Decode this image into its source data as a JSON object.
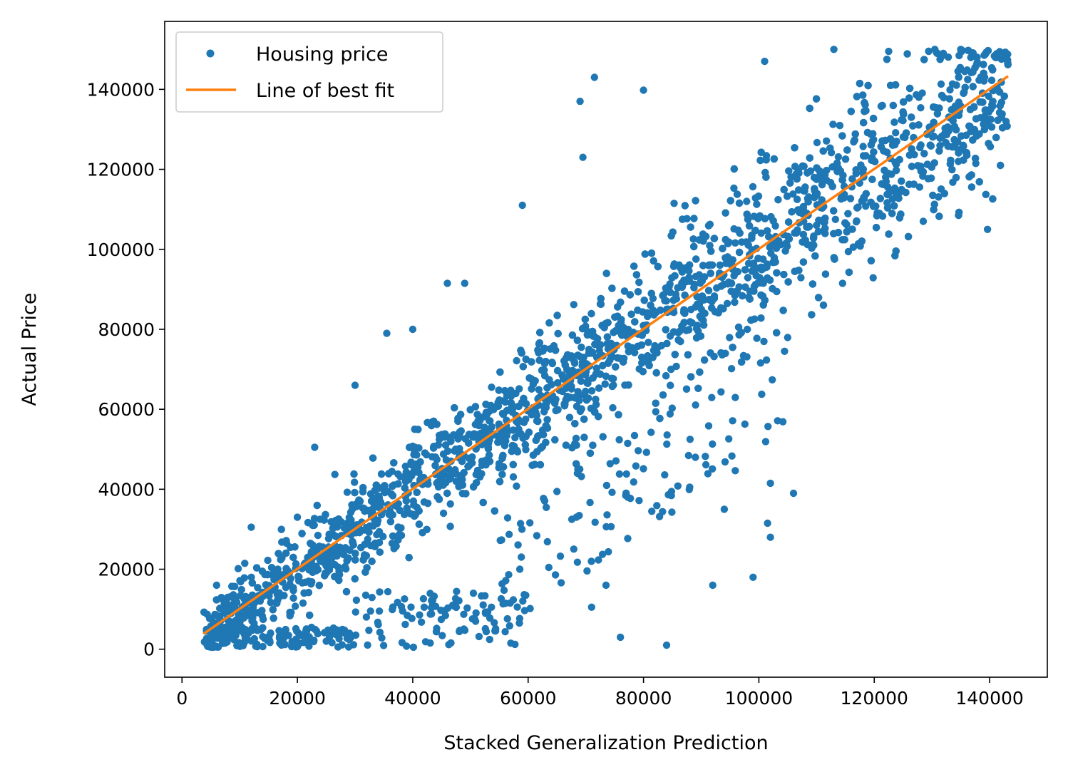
{
  "chart_data": {
    "type": "scatter",
    "xlabel": "Stacked Generalization Prediction",
    "ylabel": "Actual Price",
    "xlim": [
      -3000,
      150000
    ],
    "ylim": [
      -7000,
      157000
    ],
    "x_ticks": [
      0,
      20000,
      40000,
      60000,
      80000,
      100000,
      120000,
      140000
    ],
    "y_ticks": [
      0,
      20000,
      40000,
      60000,
      80000,
      100000,
      120000,
      140000
    ],
    "x_tick_labels": [
      "0",
      "20000",
      "40000",
      "60000",
      "80000",
      "100000",
      "120000",
      "140000"
    ],
    "y_tick_labels": [
      "0",
      "20000",
      "40000",
      "60000",
      "80000",
      "100000",
      "120000",
      "140000"
    ],
    "grid": false,
    "legend_position": "top-left",
    "series": [
      {
        "name": "Housing price",
        "kind": "scatter",
        "color": "#1f77b4",
        "description": "dense point cloud clustered around the best-fit line",
        "x_range": [
          3700,
          143200
        ],
        "y_range": [
          500,
          150000
        ],
        "sample_points": [
          [
            69000,
            137000
          ],
          [
            71500,
            143000
          ],
          [
            80000,
            139800
          ],
          [
            69500,
            123000
          ],
          [
            59000,
            111000
          ],
          [
            46000,
            91500
          ],
          [
            49000,
            91500
          ],
          [
            35500,
            79000
          ],
          [
            40000,
            80000
          ],
          [
            30000,
            66000
          ],
          [
            20000,
            33000
          ],
          [
            12000,
            30500
          ],
          [
            23000,
            50500
          ],
          [
            57000,
            1500
          ],
          [
            76000,
            3000
          ],
          [
            84000,
            1000
          ],
          [
            102000,
            41500
          ],
          [
            106000,
            39000
          ],
          [
            101500,
            31500
          ],
          [
            102000,
            28000
          ],
          [
            99000,
            18000
          ],
          [
            92000,
            16000
          ],
          [
            73500,
            16000
          ],
          [
            71000,
            10500
          ],
          [
            94000,
            35000
          ],
          [
            89000,
            48000
          ],
          [
            128500,
            107000
          ],
          [
            114500,
            91500
          ],
          [
            101000,
            147000
          ],
          [
            113000,
            150000
          ],
          [
            122500,
            149500
          ],
          [
            130500,
            150000
          ],
          [
            135000,
            150000
          ],
          [
            141000,
            148000
          ],
          [
            98000,
            80000
          ],
          [
            110000,
            106000
          ],
          [
            88000,
            92000
          ],
          [
            62000,
            63000
          ],
          [
            52000,
            47000
          ],
          [
            33000,
            35000
          ],
          [
            15000,
            14000
          ],
          [
            8000,
            10000
          ],
          [
            6000,
            16000
          ],
          [
            25000,
            2000
          ]
        ]
      },
      {
        "name": "Line of best fit",
        "kind": "line",
        "color": "#ff7f0e",
        "x": [
          3700,
          143200
        ],
        "y": [
          3800,
          143300
        ]
      }
    ]
  }
}
